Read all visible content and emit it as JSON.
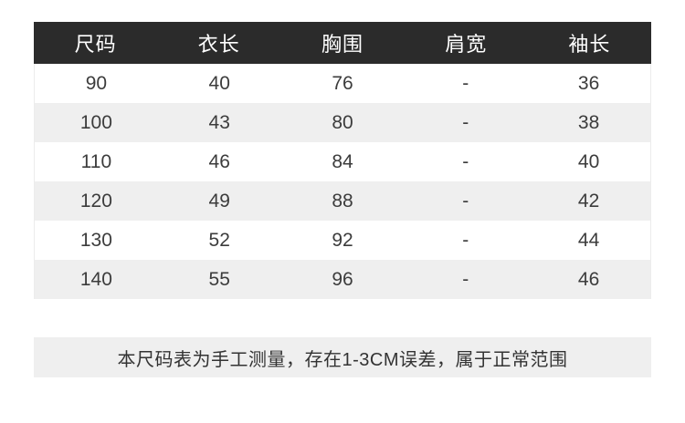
{
  "chart_data": {
    "type": "table",
    "title": "",
    "headers": [
      "尺码",
      "衣长",
      "胸围",
      "肩宽",
      "袖长"
    ],
    "rows": [
      [
        "90",
        "40",
        "76",
        "-",
        "36"
      ],
      [
        "100",
        "43",
        "80",
        "-",
        "38"
      ],
      [
        "110",
        "46",
        "84",
        "-",
        "40"
      ],
      [
        "120",
        "49",
        "88",
        "-",
        "42"
      ],
      [
        "130",
        "52",
        "92",
        "-",
        "44"
      ],
      [
        "140",
        "55",
        "96",
        "-",
        "46"
      ]
    ],
    "note": "本尺码表为手工测量，存在1-3CM误差，属于正常范围",
    "layout_hints": {
      "striped_rows": true,
      "first_data_row_background": "white",
      "columns_equal_width": true
    }
  },
  "colors": {
    "header_bg": "#2b2b2b",
    "header_text": "#ffffff",
    "stripe_bg": "#efefef",
    "note_bg": "#efefef",
    "body_text": "#3c3c3c",
    "page_bg": "#ffffff"
  }
}
